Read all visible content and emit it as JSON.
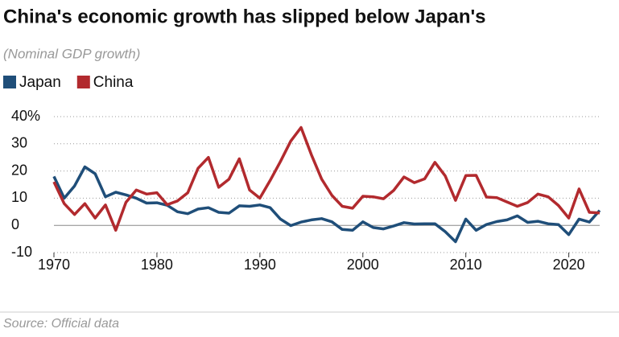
{
  "chart_data": {
    "type": "line",
    "title": "China's economic growth has slipped below Japan's",
    "subtitle": "(Nominal GDP growth)",
    "source": "Source: Official data",
    "x": [
      1970,
      1971,
      1972,
      1973,
      1974,
      1975,
      1976,
      1977,
      1978,
      1979,
      1980,
      1981,
      1982,
      1983,
      1984,
      1985,
      1986,
      1987,
      1988,
      1989,
      1990,
      1991,
      1992,
      1993,
      1994,
      1995,
      1996,
      1997,
      1998,
      1999,
      2000,
      2001,
      2002,
      2003,
      2004,
      2005,
      2006,
      2007,
      2008,
      2009,
      2010,
      2011,
      2012,
      2013,
      2014,
      2015,
      2016,
      2017,
      2018,
      2019,
      2020,
      2021,
      2022,
      2023
    ],
    "series": [
      {
        "name": "Japan",
        "color": "#1f4e79",
        "values": [
          18,
          10,
          14.5,
          21.5,
          19,
          10.5,
          12.2,
          11.2,
          10,
          8.2,
          8.3,
          7.4,
          5,
          4.3,
          6,
          6.5,
          4.8,
          4.5,
          7.2,
          7,
          7.5,
          6.5,
          2.3,
          -0.1,
          1.2,
          2,
          2.5,
          1.3,
          -1.5,
          -1.8,
          1.3,
          -0.8,
          -1.3,
          -0.2,
          1,
          0.5,
          0.6,
          0.6,
          -2.3,
          -6,
          2.3,
          -1.8,
          0.3,
          1.4,
          2,
          3.5,
          1.1,
          1.5,
          0.6,
          0.3,
          -3.4,
          2.3,
          1.2,
          5.5
        ]
      },
      {
        "name": "China",
        "color": "#b22a2e",
        "values": [
          16,
          8,
          4,
          8,
          2.7,
          7.5,
          -1.8,
          8.5,
          13,
          11.5,
          12,
          7.6,
          9,
          12,
          21,
          25,
          14,
          17,
          24.5,
          13,
          10,
          16.5,
          23.5,
          31,
          36,
          26,
          17,
          11,
          7,
          6.3,
          10.7,
          10.5,
          9.8,
          12.9,
          17.8,
          15.7,
          17.1,
          23.2,
          18.2,
          9.2,
          18.3,
          18.4,
          10.4,
          10.2,
          8.6,
          7,
          8.4,
          11.5,
          10.5,
          7.3,
          2.7,
          13.4,
          4.8,
          4.6
        ]
      }
    ],
    "xlim": [
      1970,
      2023
    ],
    "xticks": [
      1970,
      1980,
      1990,
      2000,
      2010,
      2020
    ],
    "ylim": [
      -10,
      40
    ],
    "yticks": [
      -10,
      0,
      10,
      20,
      {
        "value": 40,
        "label": "40%"
      },
      30
    ],
    "grid": true
  }
}
